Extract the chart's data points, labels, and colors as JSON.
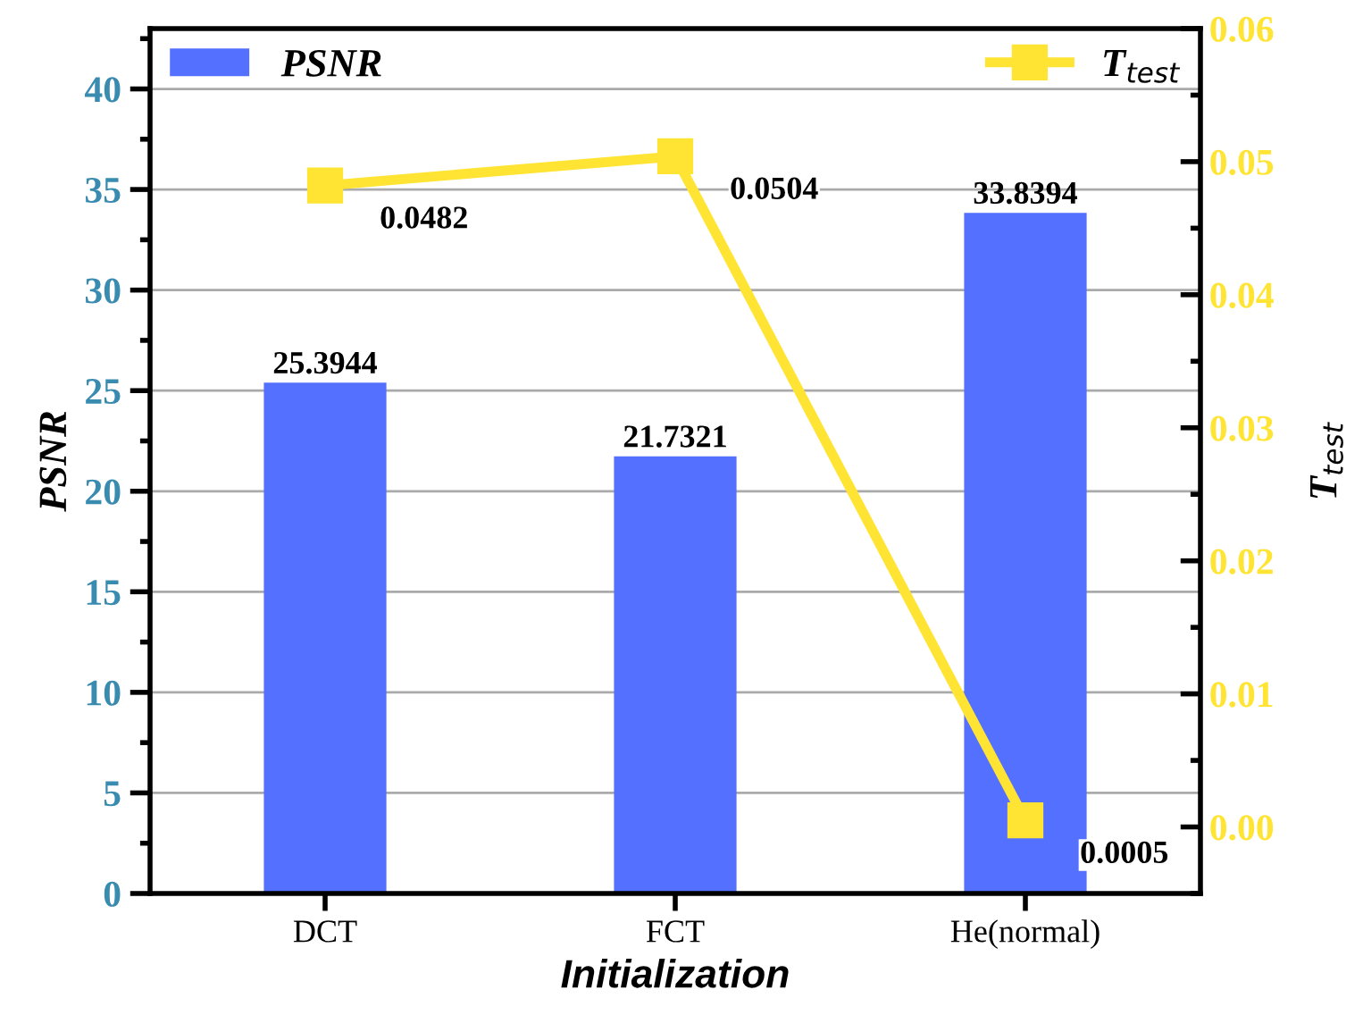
{
  "chart_data": {
    "type": "bar",
    "xlabel": "Initialization",
    "ylabel": "PSNR",
    "y2label": "T$_{test}$",
    "categories": [
      "DCT",
      "FCT",
      "He(normal)"
    ],
    "series": [
      {
        "name": "PSNR",
        "color": "#5470ff",
        "values": [
          25.3944,
          21.7321,
          33.8394
        ]
      },
      {
        "name": "T$_{test}$",
        "type": "line",
        "axis": "y2",
        "color": "#ffe433",
        "values": [
          0.0482,
          0.0504,
          0.0005
        ],
        "marker": "square"
      }
    ],
    "data_labels": true,
    "ylim": [
      0,
      43
    ],
    "yticks": [
      0,
      5,
      10,
      15,
      20,
      25,
      30,
      35,
      40
    ],
    "y2lim": [
      -0.005,
      0.06
    ],
    "y2ticks": [
      {
        "value": 0,
        "label": "0.00"
      },
      {
        "value": 0.01,
        "label": "0.01"
      },
      {
        "value": 0.02,
        "label": "0.02"
      },
      {
        "value": 0.03,
        "label": "0.03"
      },
      {
        "value": 0.04,
        "label": "0.04"
      },
      {
        "value": 0.05,
        "label": "0.05"
      },
      {
        "value": 0.06,
        "label": "0.06"
      }
    ],
    "grid": "y",
    "legend": "top",
    "line_style": "solid"
  }
}
